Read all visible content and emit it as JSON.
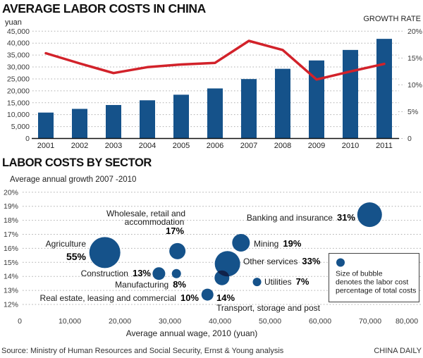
{
  "footer": {
    "source": "Source: Ministry of Human Resources and Social Security, Ernst & Young analysis",
    "brand": "CHINA DAILY"
  },
  "chart1": {
    "title": "AVERAGE LABOR COSTS IN CHINA",
    "left_axis_unit": "yuan",
    "right_axis_title": "GROWTH RATE"
  },
  "chart2": {
    "title": "LABOR COSTS BY SECTOR",
    "subtitle": "Average annual growth 2007 -2010",
    "xlabel": "Average annual wage, 2010 (yuan)",
    "legend_lines": [
      "Size of bubble",
      "denotes the labor cost",
      "percentage of total costs"
    ]
  },
  "colors": {
    "bar_blue": "#15528a",
    "line_red": "#d2222a",
    "overlap_navy": "#10224a",
    "grid_gray": "#b0b0b0"
  },
  "chart_data": [
    {
      "type": "bar",
      "title": "AVERAGE LABOR COSTS IN CHINA",
      "ylabel": "yuan",
      "y2label": "GROWTH RATE",
      "ylim": [
        0,
        45000
      ],
      "y2lim": [
        0,
        20
      ],
      "grid": "dotted horizontal",
      "legend_position": "none",
      "categories": [
        "2001",
        "2002",
        "2003",
        "2004",
        "2005",
        "2006",
        "2007",
        "2008",
        "2009",
        "2010",
        "2011"
      ],
      "series": [
        {
          "name": "Average labor cost (yuan)",
          "type": "bar",
          "values": [
            10870,
            12422,
            14040,
            16024,
            18364,
            21001,
            24932,
            29229,
            32736,
            37147,
            41799
          ]
        },
        {
          "name": "Growth rate (%)",
          "type": "line",
          "axis": "right",
          "values": [
            15.9,
            14.0,
            12.2,
            13.3,
            13.8,
            14.1,
            18.2,
            16.5,
            11.0,
            12.5,
            13.9
          ]
        }
      ],
      "y_tick_labels": [
        "0",
        "5,000",
        "10,000",
        "15,000",
        "20,000",
        "25,000",
        "30,000",
        "35,000",
        "40,000",
        "45,000"
      ],
      "y2_tick_labels": [
        "0",
        "5%",
        "10%",
        "15%",
        "20%"
      ]
    },
    {
      "type": "scatter",
      "subtype": "bubble",
      "title": "LABOR COSTS BY SECTOR",
      "subtitle": "Average annual growth 2007 -2010",
      "xlabel": "Average annual wage, 2010 (yuan)",
      "ylabel": "Average annual growth (%)",
      "xlim": [
        0,
        80000
      ],
      "ylim": [
        12,
        20
      ],
      "grid": "dotted horizontal",
      "size_note": "Size of bubble denotes the labor cost percentage of total costs",
      "x_tick_labels": [
        "0",
        "10,000",
        "20,000",
        "30,000",
        "40,000",
        "50,000",
        "60,000",
        "70,000",
        "80,000"
      ],
      "y_tick_labels": [
        "12%",
        "13%",
        "14%",
        "15%",
        "16%",
        "17%",
        "18%",
        "19%",
        "20%"
      ],
      "points": [
        {
          "id": "agriculture",
          "sector": "Agriculture",
          "wage": 17000,
          "growth": 15.7,
          "share_pct": 55,
          "r": 22
        },
        {
          "id": "wholesale",
          "sector": "Wholesale, retail and accommodation",
          "sector_lines": [
            "Wholesale, retail and",
            "accommodation"
          ],
          "wage": 31500,
          "growth": 15.8,
          "share_pct": 17,
          "r": 11.5
        },
        {
          "id": "construction",
          "sector": "Construction",
          "wage": 27800,
          "growth": 14.2,
          "share_pct": 13,
          "r": 9
        },
        {
          "id": "manufacturing",
          "sector": "Manufacturing",
          "wage": 31300,
          "growth": 14.2,
          "share_pct": 8,
          "r": 6.5
        },
        {
          "id": "real_estate",
          "sector": "Real estate, leasing and commercial",
          "wage": 37500,
          "growth": 12.7,
          "share_pct": 10,
          "r": 8.5
        },
        {
          "id": "other_services",
          "sector": "Other services",
          "wage": 41500,
          "growth": 14.9,
          "share_pct": 33,
          "r": 18
        },
        {
          "id": "transport",
          "sector": "Transport, storage and post",
          "wage": 40400,
          "growth": 13.9,
          "share_pct": 14,
          "r": 10.5
        },
        {
          "id": "mining",
          "sector": "Mining",
          "wage": 44200,
          "growth": 16.4,
          "share_pct": 19,
          "r": 12.5
        },
        {
          "id": "utilities",
          "sector": "Utilities",
          "wage": 47400,
          "growth": 13.6,
          "share_pct": 7,
          "r": 6
        },
        {
          "id": "banking",
          "sector": "Banking and insurance",
          "wage": 69900,
          "growth": 18.4,
          "share_pct": 31,
          "r": 17.5
        }
      ]
    }
  ]
}
